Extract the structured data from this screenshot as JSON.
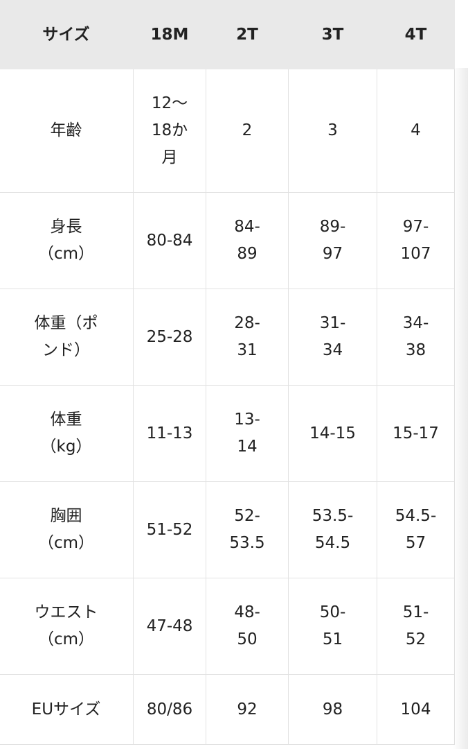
{
  "table": {
    "header": [
      "サイズ",
      "18M",
      "2T",
      "3T",
      "4T"
    ],
    "rows": [
      [
        "年齢",
        "12〜\n18か\n月",
        "2",
        "3",
        "4"
      ],
      [
        "身長\n（cm）",
        "80-84",
        "84-\n89",
        "89-\n97",
        "97-\n107"
      ],
      [
        "体重（ポ\nンド）",
        "25-28",
        "28-\n31",
        "31-\n34",
        "34-\n38"
      ],
      [
        "体重\n（kg）",
        "11-13",
        "13-\n14",
        "14-15",
        "15-17"
      ],
      [
        "胸囲\n（cm）",
        "51-52",
        "52-\n53.5",
        "53.5-\n54.5",
        "54.5-\n57"
      ],
      [
        "ウエスト\n（cm）",
        "47-48",
        "48-\n50",
        "50-\n51",
        "51-\n52"
      ],
      [
        "EUサイズ",
        "80/86",
        "92",
        "98",
        "104"
      ]
    ]
  }
}
